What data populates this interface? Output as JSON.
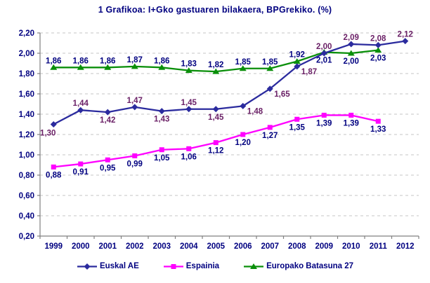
{
  "chart_data": {
    "type": "line",
    "title": "1 Grafikoa: I+Gko gastuaren bilakaera, BPGrekiko. (%)",
    "categories": [
      "1999",
      "2000",
      "2001",
      "2002",
      "2003",
      "2004",
      "2005",
      "2006",
      "2007",
      "2008",
      "2009",
      "2010",
      "2011",
      "2012"
    ],
    "xlabel": "",
    "ylabel": "",
    "ylim": [
      0.2,
      2.2
    ],
    "y_tick_step": 0.2,
    "y_ticks": [
      "0,20",
      "0,40",
      "0,60",
      "0,80",
      "1,00",
      "1,20",
      "1,40",
      "1,60",
      "1,80",
      "2,00",
      "2,20"
    ],
    "decimal_separator": ",",
    "grid": "horizontal-dashed",
    "legend_position": "bottom",
    "colors": {
      "text": "#000080",
      "axis": "#808080",
      "gridline": "#C6C6C6",
      "background": "#FFFFFF"
    },
    "series": [
      {
        "name": "Euskal AE",
        "color": "#2B2B9E",
        "marker": "diamond",
        "label_color": "#6B2167",
        "values": [
          1.3,
          1.44,
          1.42,
          1.47,
          1.43,
          1.45,
          1.45,
          1.48,
          1.65,
          1.87,
          2.0,
          2.09,
          2.08,
          2.12
        ],
        "label_pos": [
          "below-left",
          "above",
          "below",
          "above",
          "below",
          "above",
          "below",
          "right",
          "right",
          "right",
          "above",
          "above",
          "above",
          "above"
        ]
      },
      {
        "name": "Espainia",
        "color": "#FF00FF",
        "marker": "square",
        "label_color": "#000080",
        "values": [
          0.88,
          0.91,
          0.95,
          0.99,
          1.05,
          1.06,
          1.12,
          1.2,
          1.27,
          1.35,
          1.39,
          1.39,
          1.33,
          null
        ],
        "label_pos": [
          "below",
          "below",
          "below",
          "below",
          "below",
          "below",
          "below",
          "below",
          "below",
          "below",
          "below",
          "below",
          "below",
          null
        ]
      },
      {
        "name": "Europako Batasuna 27",
        "color": "#0A8F0A",
        "marker": "triangle",
        "label_color": "#000080",
        "values": [
          1.86,
          1.86,
          1.86,
          1.87,
          1.86,
          1.83,
          1.82,
          1.85,
          1.85,
          1.92,
          2.01,
          2.0,
          2.03,
          null
        ],
        "label_pos": [
          "above",
          "above",
          "above",
          "above",
          "above",
          "above",
          "above",
          "above",
          "above",
          "above",
          "below",
          "below",
          "below",
          null
        ]
      }
    ]
  }
}
